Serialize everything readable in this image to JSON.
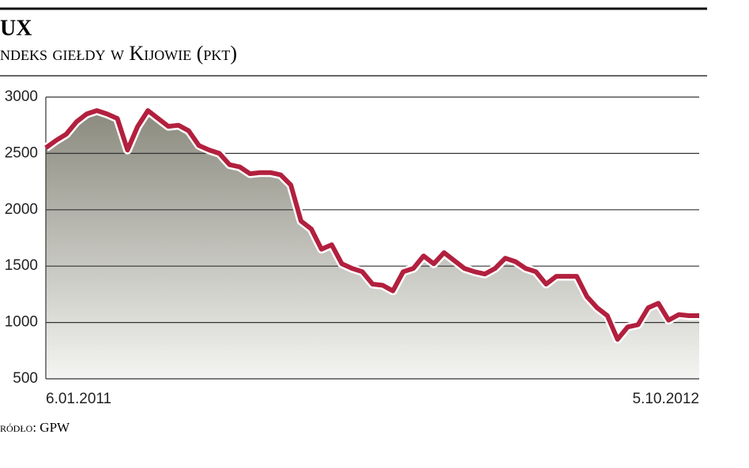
{
  "chart_data": {
    "type": "line",
    "title": "UX",
    "subtitle": "ndeks giełdy w Kijowie (pkt)",
    "source": "ródło: GPW",
    "categories": [
      "6.01.2011",
      null,
      null,
      null,
      null,
      null,
      null,
      null,
      null,
      null,
      null,
      null,
      null,
      null,
      null,
      null,
      null,
      null,
      null,
      null,
      null,
      null,
      null,
      null,
      null,
      null,
      null,
      null,
      null,
      null,
      null,
      null,
      null,
      null,
      null,
      null,
      null,
      null,
      null,
      null,
      null,
      null,
      null,
      null,
      null,
      null,
      null,
      null,
      null,
      null,
      null,
      null,
      null,
      null,
      null,
      null,
      null,
      null,
      null,
      null,
      null,
      null,
      null,
      null,
      "5.10.2012"
    ],
    "series": [
      {
        "name": "UX",
        "color": "#b2203e",
        "values": [
          2550,
          2615,
          2670,
          2780,
          2850,
          2880,
          2850,
          2810,
          2530,
          2740,
          2880,
          2810,
          2740,
          2750,
          2700,
          2570,
          2530,
          2500,
          2400,
          2380,
          2320,
          2330,
          2330,
          2310,
          2220,
          1900,
          1830,
          1650,
          1690,
          1520,
          1480,
          1450,
          1340,
          1330,
          1280,
          1450,
          1480,
          1590,
          1520,
          1620,
          1550,
          1480,
          1450,
          1430,
          1480,
          1570,
          1540,
          1480,
          1450,
          1340,
          1410,
          1410,
          1410,
          1230,
          1130,
          1060,
          850,
          960,
          980,
          1130,
          1170,
          1020,
          1070,
          1060,
          1060
        ]
      }
    ],
    "ylim": [
      500,
      3000
    ],
    "yticks": [
      500,
      1000,
      1500,
      2000,
      2500,
      3000
    ],
    "grid": true
  }
}
